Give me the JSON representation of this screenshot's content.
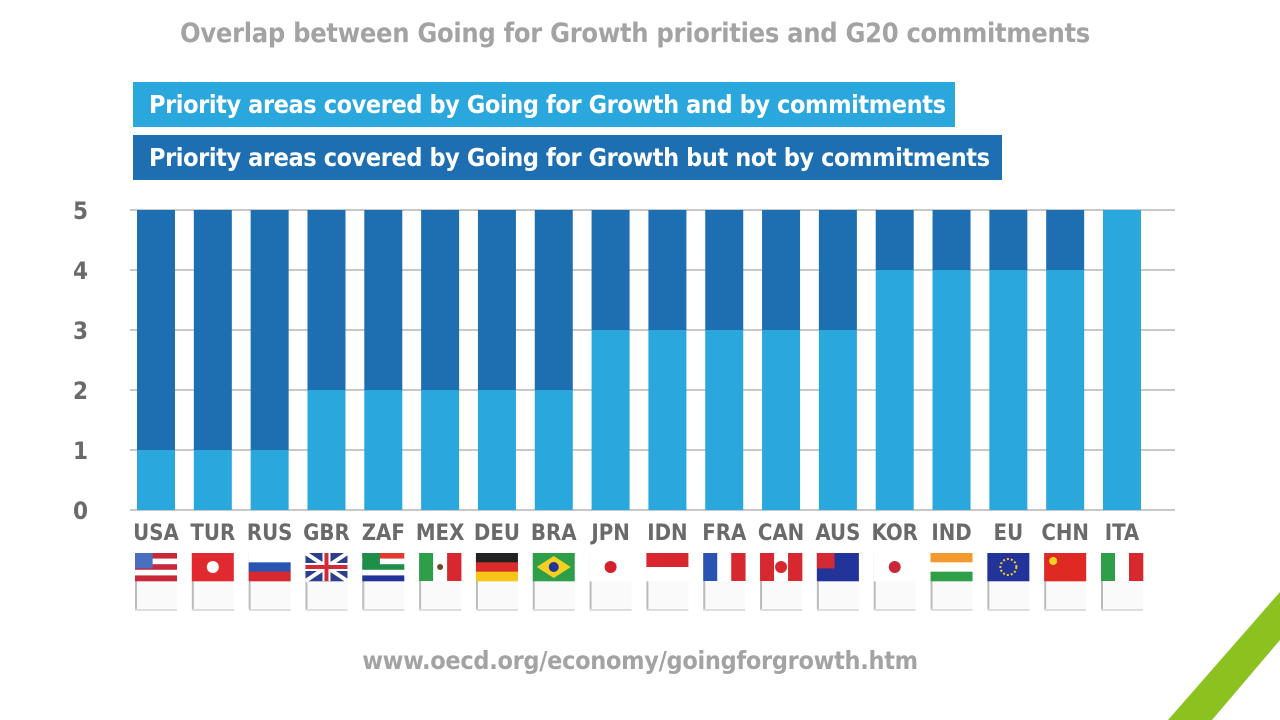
{
  "chart_data": {
    "type": "bar",
    "stacked": true,
    "title": "Overlap between Going for Growth priorities and G20 commitments",
    "categories": [
      "USA",
      "TUR",
      "RUS",
      "GBR",
      "ZAF",
      "MEX",
      "DEU",
      "BRA",
      "JPN",
      "IDN",
      "FRA",
      "CAN",
      "AUS",
      "KOR",
      "IND",
      "EU",
      "CHN",
      "ITA"
    ],
    "series": [
      {
        "name": "Priority areas covered by Going for Growth and by commitments",
        "color": "#2aa7dd",
        "values": [
          1,
          1,
          1,
          2,
          2,
          2,
          2,
          2,
          3,
          3,
          3,
          3,
          3,
          4,
          4,
          4,
          4,
          5
        ]
      },
      {
        "name": "Priority areas covered by Going for Growth but not by commitments",
        "color": "#1e6fb2",
        "values": [
          4,
          4,
          4,
          3,
          3,
          3,
          3,
          3,
          2,
          2,
          2,
          2,
          2,
          1,
          1,
          1,
          1,
          0
        ]
      }
    ],
    "ylim": [
      0,
      5
    ],
    "yticks": [
      "0",
      "1",
      "2",
      "3",
      "4",
      "5"
    ],
    "grid": true,
    "legend_placement": "top"
  },
  "flags": {
    "USA": {
      "dir": "h",
      "colors": [
        "#c8283a",
        "#ffffff",
        "#c8283a",
        "#ffffff",
        "#c8283a"
      ],
      "canton": "#4a6fbf"
    },
    "TUR": {
      "dir": "h",
      "colors": [
        "#e02a2f"
      ],
      "emblem": "#ffffff"
    },
    "RUS": {
      "dir": "h",
      "colors": [
        "#ffffff",
        "#2a52b0",
        "#d6282e"
      ]
    },
    "GBR": {
      "dir": "h",
      "colors": [
        "#2c3e8c"
      ],
      "cross": "#d42a35"
    },
    "ZAF": {
      "dir": "h",
      "colors": [
        "#e03a2f",
        "#ffffff",
        "#1e8f4a",
        "#ffffff",
        "#22339a"
      ],
      "canton": "#1e8f4a"
    },
    "MEX": {
      "dir": "v",
      "colors": [
        "#2e9e48",
        "#ffffff",
        "#d6282e"
      ],
      "emblem": "#6a4a2a"
    },
    "DEU": {
      "dir": "h",
      "colors": [
        "#222222",
        "#dd2a2a",
        "#f5c518"
      ]
    },
    "BRA": {
      "dir": "h",
      "colors": [
        "#2e9e48"
      ],
      "emblem": "#f5d020"
    },
    "JPN": {
      "dir": "h",
      "colors": [
        "#ffffff"
      ],
      "emblem": "#d6202e"
    },
    "IDN": {
      "dir": "h",
      "colors": [
        "#d6282e",
        "#ffffff"
      ]
    },
    "FRA": {
      "dir": "v",
      "colors": [
        "#2a52b0",
        "#ffffff",
        "#d6282e"
      ]
    },
    "CAN": {
      "dir": "v",
      "colors": [
        "#d6282e",
        "#ffffff",
        "#d6282e"
      ],
      "emblem": "#d6282e"
    },
    "AUS": {
      "dir": "h",
      "colors": [
        "#22339a"
      ],
      "canton": "#d42a35"
    },
    "KOR": {
      "dir": "h",
      "colors": [
        "#ffffff"
      ],
      "emblem": "#c8283a"
    },
    "IND": {
      "dir": "h",
      "colors": [
        "#f39a2f",
        "#ffffff",
        "#2e9e48"
      ]
    },
    "EU": {
      "dir": "h",
      "colors": [
        "#22339a"
      ],
      "emblem": "#f5d020"
    },
    "CHN": {
      "dir": "h",
      "colors": [
        "#de2a22"
      ],
      "emblem": "#f5d020"
    },
    "ITA": {
      "dir": "v",
      "colors": [
        "#2e9e48",
        "#ffffff",
        "#d6282e"
      ]
    }
  },
  "footer": {
    "url": "www.oecd.org/economy/goingforgrowth.htm"
  },
  "accent_color": "#8cc21f"
}
